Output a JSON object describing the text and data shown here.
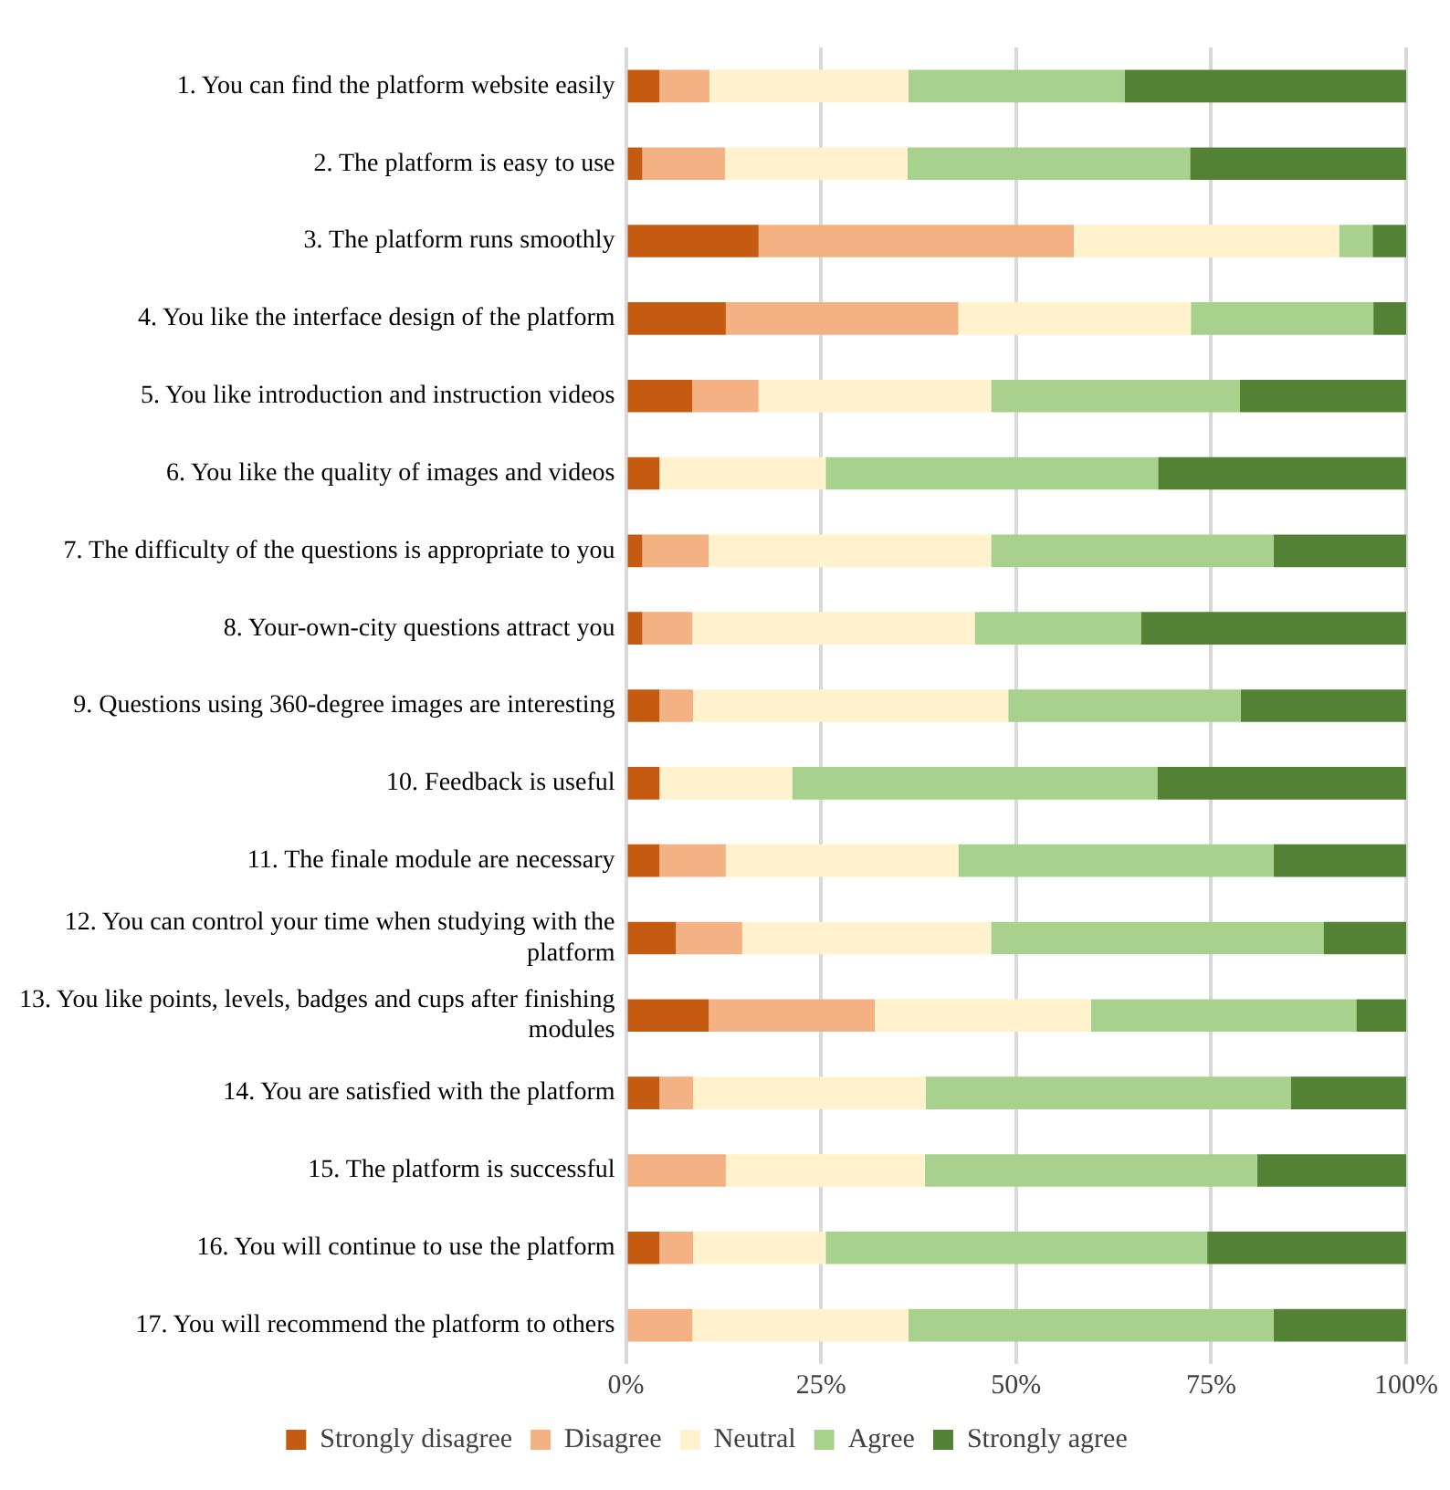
{
  "chart_data": {
    "type": "bar",
    "orientation": "horizontal",
    "stacked": true,
    "grid": "x",
    "legend": "bottom",
    "categories": [
      "1. You can find the platform website easily",
      "2. The platform is easy to use",
      "3. The platform runs smoothly",
      "4. You like the interface design of the platform",
      "5. You like introduction and instruction videos",
      "6. You like the quality of images and videos",
      "7. The difficulty of the questions is appropriate to you",
      "8. Your-own-city questions attract you",
      "9. Questions using 360-degree images are interesting",
      "10. Feedback is useful",
      "11. The finale module are necessary",
      "12. You can control your time when studying with the platform",
      "13. You like points, levels, badges and cups after finishing modules",
      "14. You are satisfied with the platform",
      "15. The platform is successful",
      "16. You will continue to use the platform",
      "17. You will recommend the platform to others"
    ],
    "series": [
      {
        "name": "Strongly disagree",
        "color": "#c55a11",
        "values": [
          4.3,
          2.1,
          17.0,
          12.8,
          8.5,
          4.3,
          2.1,
          2.1,
          4.3,
          4.3,
          4.3,
          6.4,
          10.6,
          4.3,
          0,
          4.3,
          0
        ]
      },
      {
        "name": "Disagree",
        "color": "#f4b183",
        "values": [
          6.4,
          10.6,
          40.4,
          29.8,
          8.5,
          0,
          8.5,
          6.4,
          4.3,
          0,
          8.5,
          8.5,
          21.3,
          4.3,
          12.8,
          4.3,
          8.5
        ]
      },
      {
        "name": "Neutral",
        "color": "#fff2cc",
        "values": [
          25.5,
          23.4,
          34.0,
          29.8,
          29.8,
          21.3,
          36.2,
          36.2,
          40.4,
          17.0,
          29.8,
          31.9,
          27.7,
          29.8,
          25.5,
          17.0,
          27.7
        ]
      },
      {
        "name": "Agree",
        "color": "#a9d18e",
        "values": [
          27.7,
          36.2,
          4.3,
          23.4,
          31.9,
          42.6,
          36.2,
          21.3,
          29.8,
          46.8,
          40.4,
          42.6,
          34.0,
          46.8,
          42.6,
          48.9,
          46.8
        ]
      },
      {
        "name": "Strongly agree",
        "color": "#548235",
        "values": [
          36.1,
          27.7,
          4.3,
          4.2,
          21.3,
          31.8,
          17.0,
          34.0,
          21.2,
          31.9,
          17.0,
          10.6,
          6.4,
          14.8,
          19.1,
          25.5,
          17.0
        ]
      }
    ],
    "xlim": [
      0,
      100
    ],
    "xticks": [
      {
        "value": 0,
        "label": "0%"
      },
      {
        "value": 25,
        "label": "25%"
      },
      {
        "value": 50,
        "label": "50%"
      },
      {
        "value": 75,
        "label": "75%"
      },
      {
        "value": 100,
        "label": "100%"
      }
    ]
  }
}
